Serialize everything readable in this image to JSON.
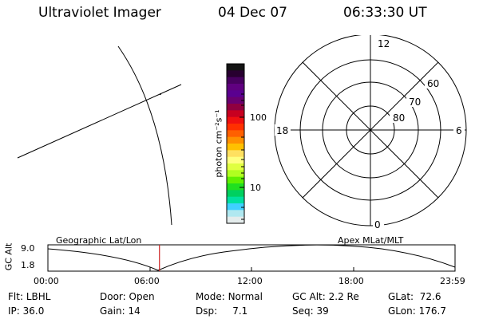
{
  "header": {
    "title": "Ultraviolet Imager",
    "date": "04 Dec 07",
    "time": "06:33:30 UT"
  },
  "colorbar": {
    "unit_label": "photon cm⁻²s⁻¹",
    "ticks": [
      "100",
      "10"
    ],
    "colors": [
      "#141414",
      "#280030",
      "#480060",
      "#600080",
      "#5a0090",
      "#6a0070",
      "#900040",
      "#c80020",
      "#f01010",
      "#ff3000",
      "#ff6000",
      "#ff9000",
      "#ffc000",
      "#ffe060",
      "#ffff80",
      "#e0ff40",
      "#b0ff20",
      "#60f000",
      "#20e020",
      "#00d060",
      "#00e0a0",
      "#40d0ff",
      "#b0e8f0",
      "#e4ecec"
    ]
  },
  "polar": {
    "mlt_labels": {
      "top": "12",
      "right": "6",
      "bottom": "0",
      "left": "18"
    },
    "lat_labels": [
      "60",
      "70",
      "80"
    ]
  },
  "timeline": {
    "y_axis_label": "GC Alt",
    "y_ticks": [
      "9.0",
      "1.8"
    ],
    "left_caption": "Geographic Lat/Lon",
    "right_caption": "Apex MLat/MLT",
    "x_ticks": [
      "00:00",
      "06:00",
      "12:00",
      "18:00",
      "23:59"
    ],
    "current_time_fraction": 0.274,
    "marker_color": "#cc2020"
  },
  "info": {
    "row1": [
      {
        "label": "Flt:",
        "value": "LBHL"
      },
      {
        "label": "Door:",
        "value": "Open"
      },
      {
        "label": "Mode:",
        "value": "Normal"
      },
      {
        "label": "GC Alt:",
        "value": "2.2 Re"
      },
      {
        "label": "GLat:",
        "value": "72.6"
      }
    ],
    "row2": [
      {
        "label": "IP:",
        "value": "36.0"
      },
      {
        "label": "Gain:",
        "value": "14"
      },
      {
        "label": "Dsp:",
        "value": "7.1"
      },
      {
        "label": "Seq:",
        "value": "39"
      },
      {
        "label": "GLon:",
        "value": "176.7"
      }
    ]
  }
}
